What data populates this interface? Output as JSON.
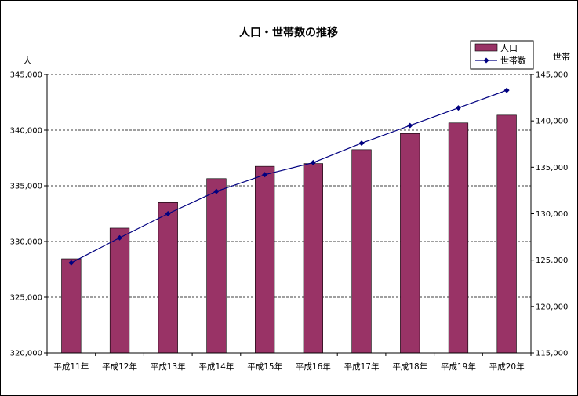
{
  "chart_data": {
    "type": "bar",
    "title": "人口・世帯数の推移",
    "categories": [
      "平成11年",
      "平成12年",
      "平成13年",
      "平成14年",
      "平成15年",
      "平成16年",
      "平成17年",
      "平成18年",
      "平成19年",
      "平成20年"
    ],
    "series": [
      {
        "name": "人口",
        "type": "bar",
        "axis": "left",
        "color": "#993366",
        "values": [
          328450,
          331200,
          333500,
          335650,
          336750,
          337000,
          338250,
          339700,
          340650,
          341350
        ]
      },
      {
        "name": "世帯数",
        "type": "line",
        "axis": "right",
        "color": "#000080",
        "marker": "diamond",
        "values": [
          124700,
          127400,
          130000,
          132400,
          134200,
          135500,
          137600,
          139500,
          141400,
          143300
        ]
      }
    ],
    "y_left": {
      "label": "人",
      "ylim": [
        320000,
        345000
      ],
      "ticks": [
        "320,000",
        "325,000",
        "330,000",
        "335,000",
        "340,000",
        "345,000"
      ]
    },
    "y_right": {
      "label": "世帯",
      "ylim": [
        115000,
        145000
      ],
      "ticks": [
        "115,000",
        "120,000",
        "125,000",
        "130,000",
        "135,000",
        "140,000",
        "145,000"
      ]
    },
    "grid": "horizontal dashed",
    "legend_position": "top-right"
  }
}
